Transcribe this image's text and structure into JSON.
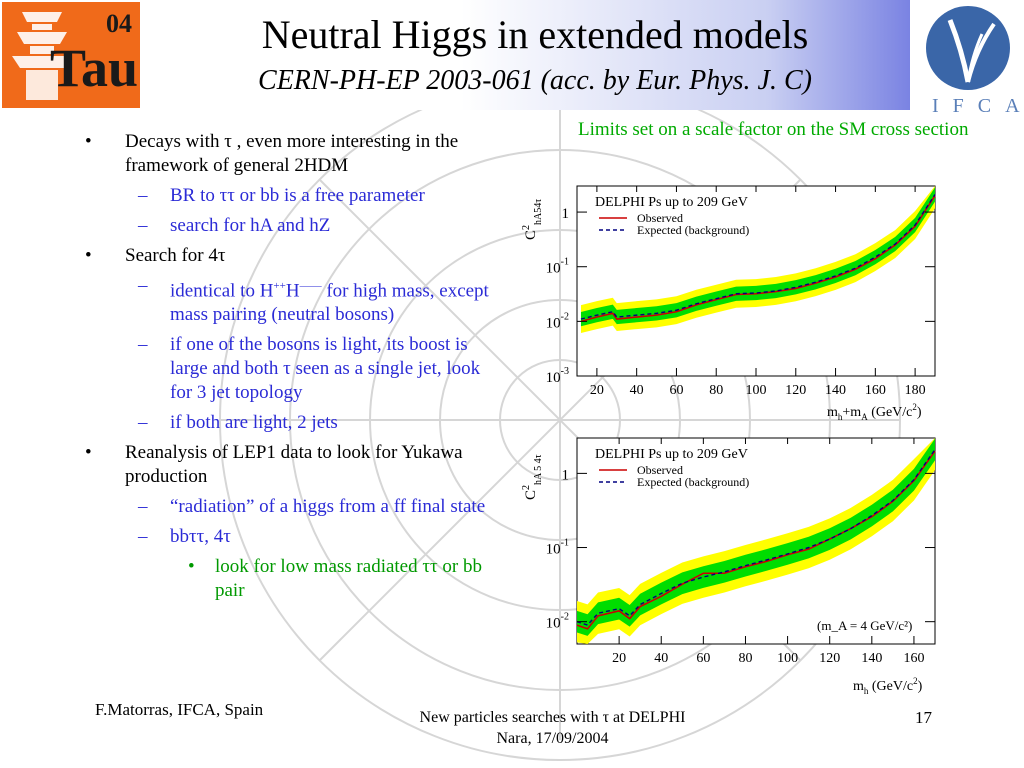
{
  "title": "Neutral Higgs in extended models",
  "subtitle": "CERN-PH-EP 2003-061 (acc. by Eur. Phys. J. C)",
  "logos": {
    "left": "Tau 04",
    "right": "IFCA"
  },
  "bullets": {
    "decays": "Decays with τ , even more interesting in the framework of general 2HDM",
    "br": "BR to ττ or bb is a free parameter",
    "search_ha_hz": "search for hA and hZ",
    "search_4tau": "Search for 4τ",
    "identical_pre": "identical to H",
    "identical_sup1": "++",
    "identical_mid": "H",
    "identical_sup2": "——",
    "identical_post": " for high mass, except mass pairing (neutral bosons)",
    "light_one": "if one of the bosons is light, its boost is large and both τ seen as a single jet, look for 3 jet topology",
    "both_light": "if both are light, 2 jets",
    "reanalysis": "Reanalysis of LEP1 data to look for Yukawa production",
    "radiation": "“radiation” of a higgs from a ff final state",
    "bbtt": "bbττ, 4τ",
    "low_mass": "look for low mass radiated ττ or bb pair"
  },
  "plot_caption": "Limits set on a  scale factor on the SM cross section",
  "footer": {
    "author": "F.Matorras, IFCA, Spain",
    "talk_line1": "New particles searches with τ at DELPHI",
    "talk_line2": "Nara, 17/09/2004",
    "page": "17"
  },
  "colors": {
    "subbullet": "#2b2bd6",
    "subsubbullet": "#009900",
    "caption": "#00aa00",
    "observed": "#cc0000",
    "expected": "#000080",
    "band_1sigma": "#00dd00",
    "band_2sigma": "#ffff00"
  },
  "chart_data": [
    {
      "type": "line",
      "title": "DELPHI Ps up to 209 GeV",
      "ylabel_main": "C",
      "ylabel_sup": "2",
      "ylabel_sub": "hA54τ",
      "xlabel_pre": "m",
      "xlabel_sub1": "h",
      "xlabel_mid": "+m",
      "xlabel_sub2": "A",
      "xlabel_post": " (GeV/c",
      "xlabel_sup": "2",
      "xlabel_end": ")",
      "xlim": [
        10,
        190
      ],
      "ylog": true,
      "ylim": [
        0.001,
        3
      ],
      "xticks": [
        20,
        40,
        60,
        80,
        100,
        120,
        140,
        160,
        180
      ],
      "yticks": [
        {
          "value": 1,
          "base": "1",
          "exp": ""
        },
        {
          "value": 0.1,
          "base": "10",
          "exp": "-1"
        },
        {
          "value": 0.01,
          "base": "10",
          "exp": "-2"
        },
        {
          "value": 0.001,
          "base": "10",
          "exp": "-3"
        }
      ],
      "legend": [
        "Observed",
        "Expected (background)"
      ],
      "annotation": "",
      "x": [
        12,
        20,
        28,
        30,
        40,
        50,
        60,
        70,
        80,
        90,
        100,
        110,
        120,
        130,
        140,
        150,
        160,
        170,
        180,
        190
      ],
      "observed": [
        0.01,
        0.012,
        0.014,
        0.011,
        0.012,
        0.013,
        0.015,
        0.02,
        0.025,
        0.031,
        0.032,
        0.035,
        0.04,
        0.05,
        0.065,
        0.09,
        0.14,
        0.25,
        0.55,
        2.0
      ],
      "expected": [
        0.011,
        0.013,
        0.015,
        0.012,
        0.013,
        0.014,
        0.016,
        0.021,
        0.026,
        0.032,
        0.033,
        0.036,
        0.042,
        0.052,
        0.068,
        0.094,
        0.15,
        0.26,
        0.58,
        2.1
      ],
      "band1_factor": 1.35,
      "band2_factor": 1.8
    },
    {
      "type": "line",
      "title": "DELPHI Ps up to 209 GeV",
      "ylabel_main": "C",
      "ylabel_sup": "2",
      "ylabel_sub": "hA 5 4τ",
      "xlabel_pre": "m",
      "xlabel_sub1": "h",
      "xlabel_mid": "",
      "xlabel_sub2": "",
      "xlabel_post": " (GeV/c",
      "xlabel_sup": "2",
      "xlabel_end": ")",
      "xlim": [
        0,
        170
      ],
      "ylog": true,
      "ylim": [
        0.005,
        3
      ],
      "xticks": [
        20,
        40,
        60,
        80,
        100,
        120,
        140,
        160
      ],
      "yticks": [
        {
          "value": 1,
          "base": "1",
          "exp": ""
        },
        {
          "value": 0.1,
          "base": "10",
          "exp": "-1"
        },
        {
          "value": 0.01,
          "base": "10",
          "exp": "-2"
        }
      ],
      "legend": [
        "Observed",
        "Expected (background)"
      ],
      "annotation": "(m_A = 4 GeV/c²)",
      "x": [
        0,
        5,
        10,
        20,
        25,
        30,
        40,
        50,
        60,
        70,
        80,
        90,
        100,
        110,
        120,
        130,
        140,
        150,
        160,
        170
      ],
      "observed": [
        0.009,
        0.008,
        0.012,
        0.014,
        0.011,
        0.016,
        0.022,
        0.032,
        0.045,
        0.045,
        0.055,
        0.065,
        0.08,
        0.095,
        0.13,
        0.18,
        0.26,
        0.42,
        0.8,
        2.0
      ],
      "expected": [
        0.01,
        0.009,
        0.013,
        0.015,
        0.012,
        0.017,
        0.024,
        0.033,
        0.04,
        0.047,
        0.057,
        0.068,
        0.082,
        0.1,
        0.13,
        0.18,
        0.27,
        0.43,
        0.82,
        2.1
      ],
      "band1_factor": 1.4,
      "band2_factor": 1.9
    }
  ]
}
